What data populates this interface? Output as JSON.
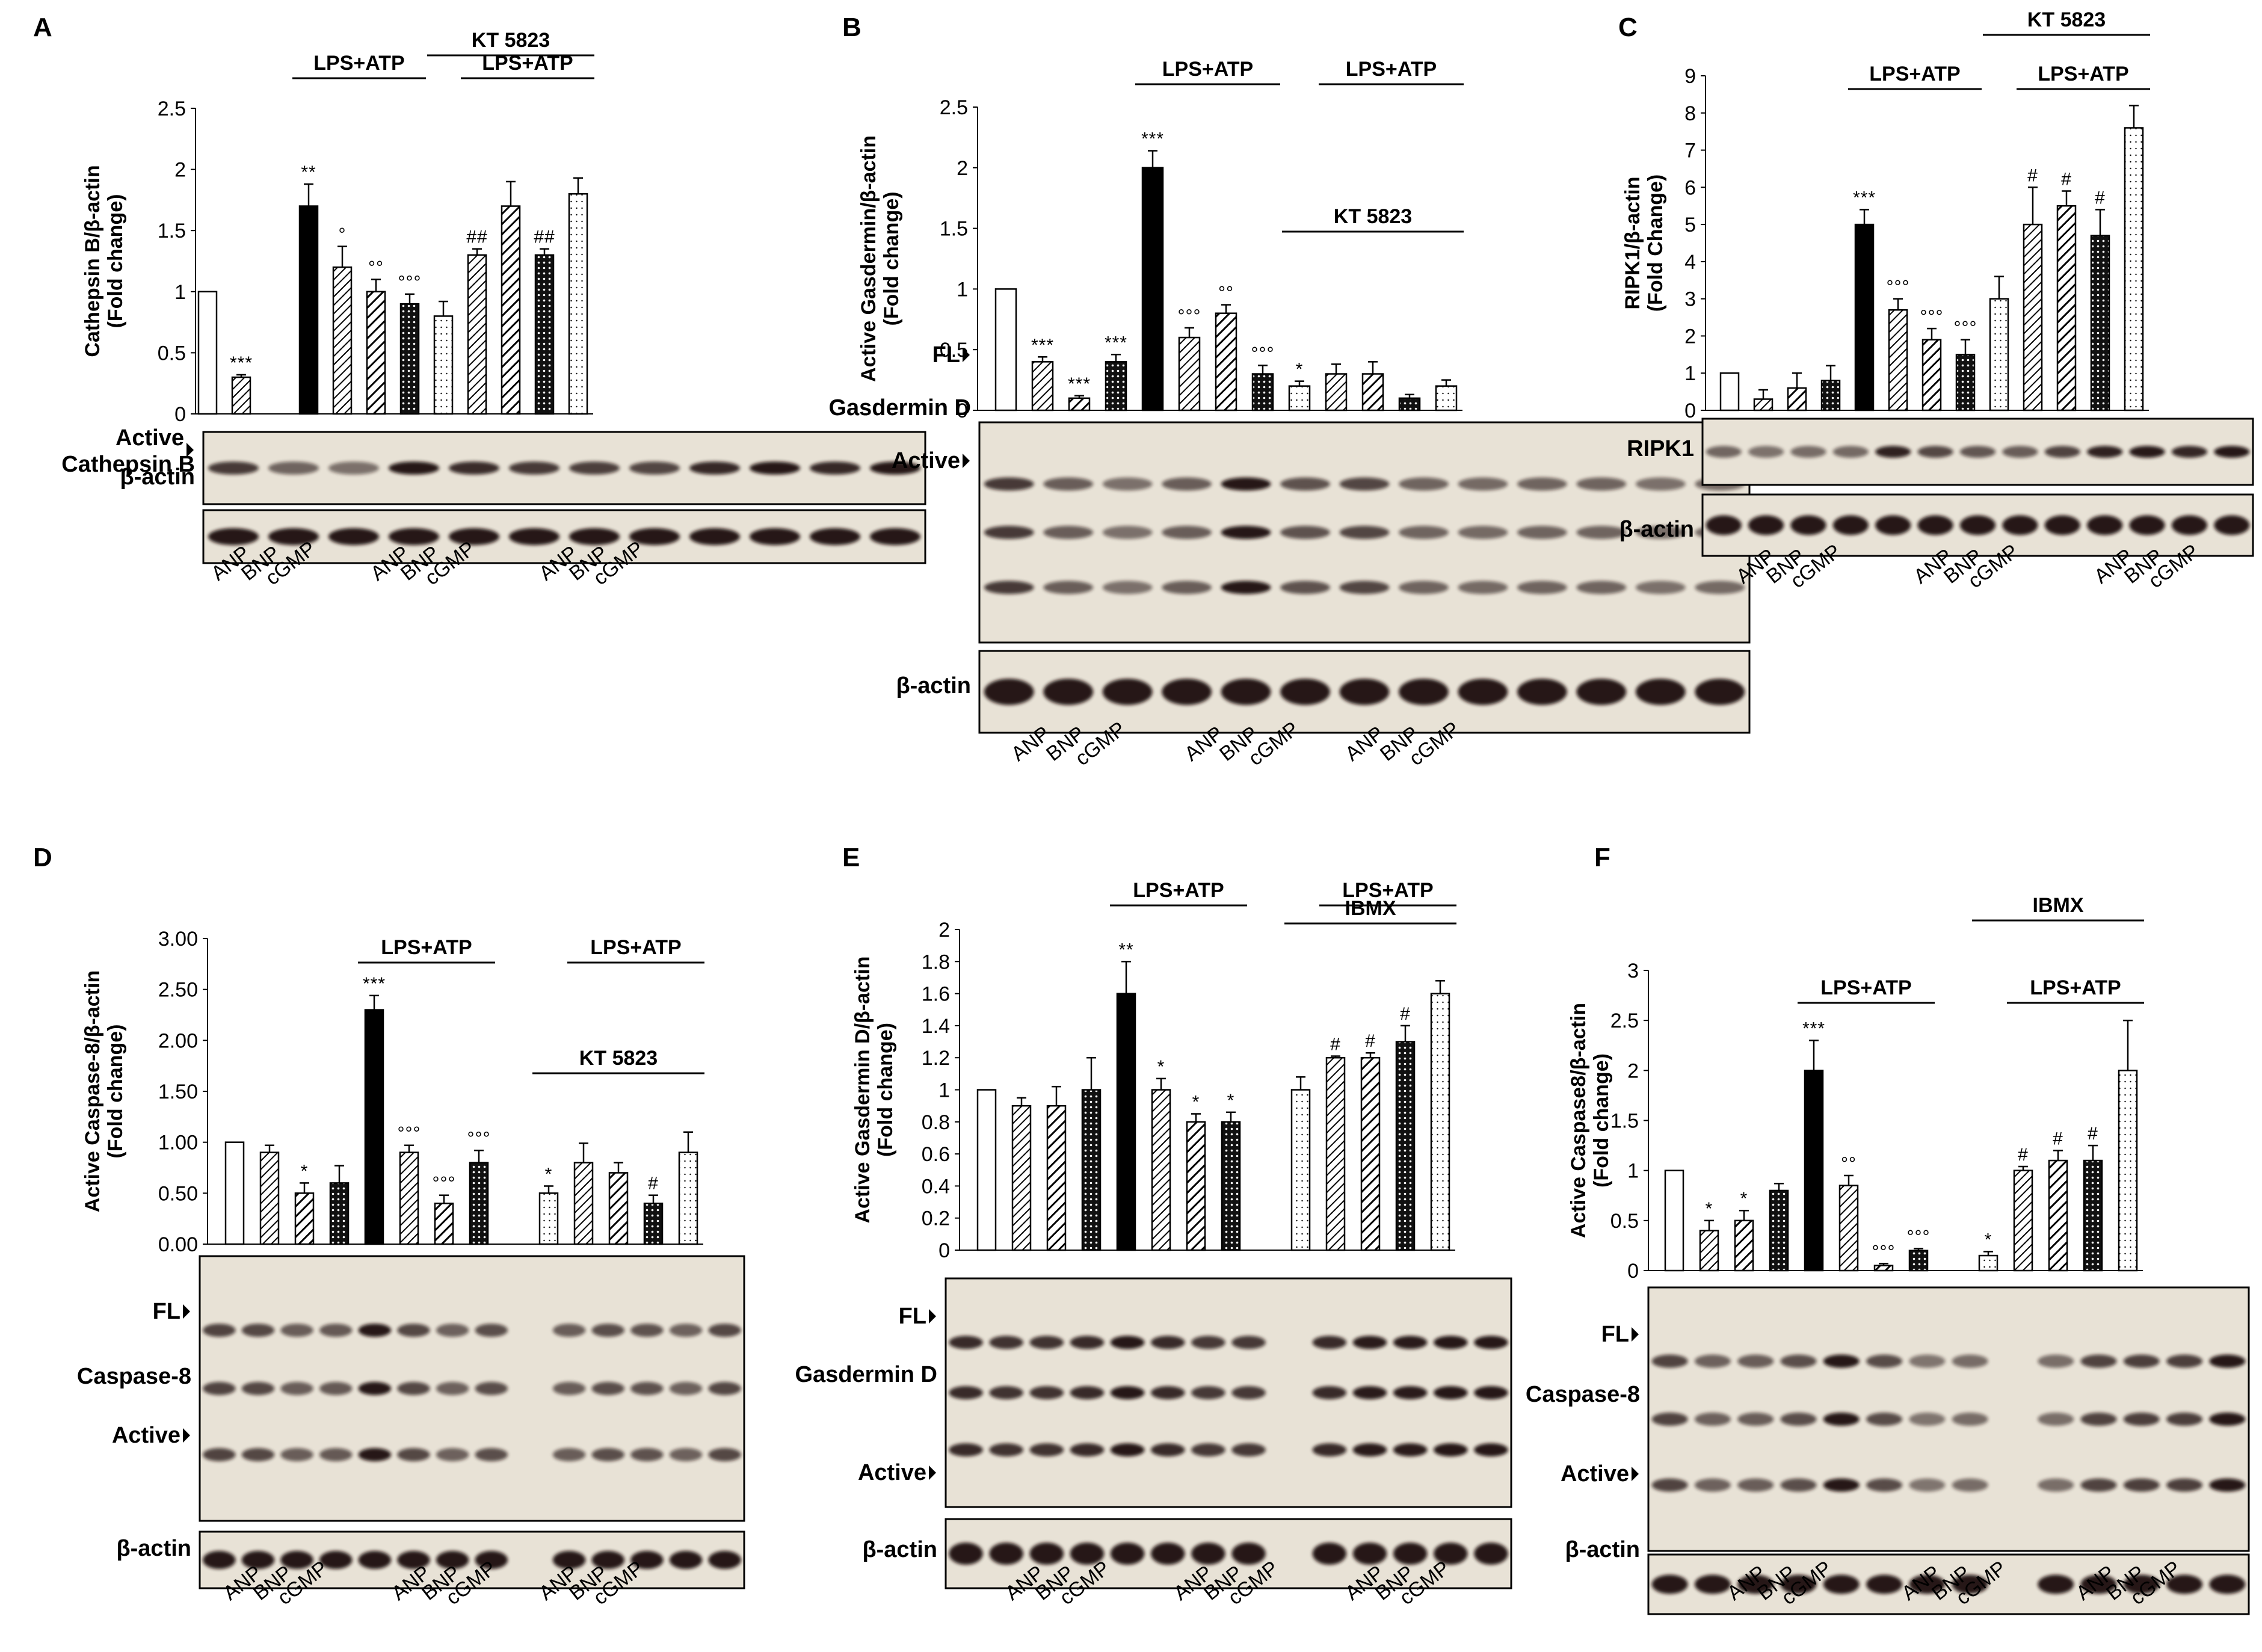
{
  "figure": {
    "bands": {
      "fl": "FL",
      "active": "Active",
      "actin": "β-actin"
    }
  },
  "chart_data": [
    {
      "panel": "A",
      "type": "bar",
      "ylabel": [
        "Cathepsin B/β-actin",
        "(Fold change)"
      ],
      "ylim": [
        0,
        2.5
      ],
      "yticks": [
        "0",
        "0.5",
        "1",
        "1.5",
        "2",
        "2.5"
      ],
      "values": [
        1,
        0.3,
        null,
        1.7,
        1.2,
        1.0,
        0.9,
        0.8,
        1.3,
        1.7,
        1.3,
        1.8
      ],
      "errors": [
        0,
        0.02,
        0,
        0.18,
        0.17,
        0.1,
        0.08,
        0.12,
        0.05,
        0.2,
        0.05,
        0.13
      ],
      "styles": [
        "white",
        "hatch",
        "white",
        "black",
        "hatch",
        "hatch2",
        "dots",
        "dotted",
        "hatch",
        "hatch2",
        "dots",
        "dotted"
      ],
      "annotations": [
        "",
        "***",
        "",
        "**",
        "°",
        "°°",
        "°°°",
        "",
        "##",
        "",
        "##",
        ""
      ],
      "brackets": [
        {
          "label": "LPS+ATP",
          "from": 3,
          "to": 6,
          "level": 0
        },
        {
          "label": "KT 5823",
          "from": 7,
          "to": 11,
          "level": 1
        },
        {
          "label": "LPS+ATP",
          "from": 8,
          "to": 11,
          "level": 0
        }
      ],
      "blots": [
        "Active\nCathepsin B",
        "β-actin"
      ],
      "xlabels": [
        "ANP",
        "BNP",
        "cGMP",
        "ANP",
        "BNP",
        "cGMP",
        "ANP",
        "BNP",
        "cGMP"
      ]
    },
    {
      "panel": "B",
      "type": "bar",
      "ylabel": [
        "Active Gasdermin/β-actin",
        "(Fold change)"
      ],
      "ylim": [
        0,
        2.5
      ],
      "yticks": [
        "0",
        "0.5",
        "1",
        "1.5",
        "2",
        "2.5"
      ],
      "values": [
        1,
        0.4,
        0.1,
        0.4,
        2.0,
        0.6,
        0.8,
        0.3,
        0.2,
        0.3,
        0.3,
        0.1,
        0.2
      ],
      "errors": [
        0,
        0.04,
        0.02,
        0.06,
        0.14,
        0.08,
        0.07,
        0.07,
        0.04,
        0.08,
        0.1,
        0.03,
        0.05
      ],
      "styles": [
        "white",
        "hatch",
        "hatch2",
        "dots",
        "black",
        "hatch",
        "hatch2",
        "dots",
        "dotted",
        "hatch",
        "hatch2",
        "dots",
        "dotted"
      ],
      "annotations": [
        "",
        "***",
        "***",
        "***",
        "***",
        "°°°",
        "°°",
        "°°°",
        "*",
        "",
        "",
        "",
        ""
      ],
      "brackets": [
        {
          "label": "LPS+ATP",
          "from": 4,
          "to": 7,
          "level": 0
        },
        {
          "label": "KT 5823",
          "from": 8,
          "to": 12,
          "level": 1
        },
        {
          "label": "LPS+ATP",
          "from": 9,
          "to": 12,
          "level": 0
        }
      ],
      "blots": [
        "FL",
        "Gasdermin D",
        "Active",
        "β-actin"
      ],
      "xlabels": [
        "ANP",
        "BNP",
        "cGMP",
        "ANP",
        "BNP",
        "cGMP",
        "ANP",
        "BNP",
        "cGMP"
      ]
    },
    {
      "panel": "C",
      "type": "bar",
      "ylabel": [
        "RIPK1/β-actin",
        "(Fold Change)"
      ],
      "ylim": [
        0,
        9
      ],
      "yticks": [
        "0",
        "1",
        "2",
        "3",
        "4",
        "5",
        "6",
        "7",
        "8",
        "9"
      ],
      "values": [
        1,
        0.3,
        0.6,
        0.8,
        5.0,
        2.7,
        1.9,
        1.5,
        3.0,
        5.0,
        5.5,
        4.7,
        7.6
      ],
      "errors": [
        0,
        0.25,
        0.4,
        0.4,
        0.4,
        0.3,
        0.3,
        0.4,
        0.6,
        1.0,
        0.4,
        0.7,
        0.6
      ],
      "styles": [
        "white",
        "hatch",
        "hatch2",
        "dots",
        "black",
        "hatch",
        "hatch2",
        "dots",
        "dotted",
        "hatch",
        "hatch2",
        "dots",
        "dotted"
      ],
      "annotations": [
        "",
        "",
        "",
        "",
        "***",
        "°°°",
        "°°°",
        "°°°",
        "",
        "#",
        "#",
        "#",
        ""
      ],
      "brackets": [
        {
          "label": "LPS+ATP",
          "from": 4,
          "to": 7,
          "level": 0
        },
        {
          "label": "KT 5823",
          "from": 8,
          "to": 12,
          "level": 1
        },
        {
          "label": "LPS+ATP",
          "from": 9,
          "to": 12,
          "level": 0
        }
      ],
      "blots": [
        "RIPK1",
        "β-actin"
      ],
      "xlabels": [
        "ANP",
        "BNP",
        "cGMP",
        "ANP",
        "BNP",
        "cGMP",
        "ANP",
        "BNP",
        "cGMP"
      ]
    },
    {
      "panel": "D",
      "type": "bar",
      "ylabel": [
        "Active Caspase-8/β-actin",
        "(Fold change)"
      ],
      "ylim": [
        0,
        3
      ],
      "yticks": [
        "0.00",
        "0.50",
        "1.00",
        "1.50",
        "2.00",
        "2.50",
        "3.00"
      ],
      "values": [
        1,
        0.9,
        0.5,
        0.6,
        2.3,
        0.9,
        0.4,
        0.8,
        null,
        0.5,
        0.8,
        0.7,
        0.4,
        0.9
      ],
      "errors": [
        0,
        0.07,
        0.1,
        0.17,
        0.14,
        0.07,
        0.08,
        0.12,
        0,
        0.07,
        0.19,
        0.1,
        0.08,
        0.2
      ],
      "styles": [
        "white",
        "hatch",
        "hatch2",
        "dots",
        "black",
        "hatch",
        "hatch2",
        "dots",
        "white",
        "dotted",
        "hatch",
        "hatch2",
        "dots",
        "dotted"
      ],
      "annotations": [
        "",
        "",
        "*",
        "",
        "***",
        "°°°",
        "°°°",
        "°°°",
        "",
        "*",
        "",
        "",
        "#",
        ""
      ],
      "brackets": [
        {
          "label": "LPS+ATP",
          "from": 4,
          "to": 7,
          "level": 0
        },
        {
          "label": "KT 5823",
          "from": 9,
          "to": 13,
          "level": 1
        },
        {
          "label": "LPS+ATP",
          "from": 10,
          "to": 13,
          "level": 0
        }
      ],
      "blots": [
        "FL",
        "Caspase-8",
        "Active",
        "β-actin"
      ],
      "xlabels": [
        "ANP",
        "BNP",
        "cGMP",
        "ANP",
        "BNP",
        "cGMP",
        "ANP",
        "BNP",
        "cGMP"
      ]
    },
    {
      "panel": "E",
      "type": "bar",
      "ylabel": [
        "Active Gasdermin D/β-actin",
        "(Fold change)"
      ],
      "ylim": [
        0,
        2
      ],
      "yticks": [
        "0",
        "0.2",
        "0.4",
        "0.6",
        "0.8",
        "1",
        "1.2",
        "1.4",
        "1.6",
        "1.8",
        "2"
      ],
      "values": [
        1,
        0.9,
        0.9,
        1.0,
        1.6,
        1.0,
        0.8,
        0.8,
        null,
        1.0,
        1.2,
        1.2,
        1.3,
        1.6
      ],
      "errors": [
        0,
        0.05,
        0.12,
        0.2,
        0.2,
        0.07,
        0.05,
        0.06,
        0,
        0.08,
        0.01,
        0.03,
        0.1,
        0.08
      ],
      "styles": [
        "white",
        "hatch",
        "hatch2",
        "dots",
        "black",
        "hatch",
        "hatch2",
        "dots",
        "white",
        "dotted",
        "hatch",
        "hatch2",
        "dots",
        "dotted"
      ],
      "annotations": [
        "",
        "",
        "",
        "",
        "**",
        "*",
        "*",
        "*",
        "",
        "",
        "#",
        "#",
        "#",
        ""
      ],
      "brackets": [
        {
          "label": "LPS+ATP",
          "from": 4,
          "to": 7,
          "level": 0
        },
        {
          "label": "IBMX",
          "from": 9,
          "to": 13,
          "level": 1
        },
        {
          "label": "LPS+ATP",
          "from": 10,
          "to": 13,
          "level": 0
        }
      ],
      "blots": [
        "FL",
        "Gasdermin D",
        "Active",
        "β-actin"
      ],
      "xlabels": [
        "ANP",
        "BNP",
        "cGMP",
        "ANP",
        "BNP",
        "cGMP",
        "ANP",
        "BNP",
        "cGMP"
      ]
    },
    {
      "panel": "F",
      "type": "bar",
      "ylabel": [
        "Active Caspase8/β-actin",
        "(Fold change)"
      ],
      "ylim": [
        0,
        3
      ],
      "yticks": [
        "0",
        "0.5",
        "1",
        "1.5",
        "2",
        "2.5",
        "3"
      ],
      "values": [
        1,
        0.4,
        0.5,
        0.8,
        2.0,
        0.85,
        0.05,
        0.2,
        null,
        0.15,
        1.0,
        1.1,
        1.1,
        2.0
      ],
      "errors": [
        0,
        0.1,
        0.1,
        0.07,
        0.3,
        0.1,
        0.02,
        0.02,
        0,
        0.04,
        0.04,
        0.1,
        0.15,
        0.5
      ],
      "styles": [
        "white",
        "hatch",
        "hatch2",
        "dots",
        "black",
        "hatch",
        "hatch2",
        "dots",
        "white",
        "dotted",
        "hatch",
        "hatch2",
        "dots",
        "dotted"
      ],
      "annotations": [
        "",
        "*",
        "*",
        "",
        "***",
        "°°",
        "°°°",
        "°°°",
        "",
        "*",
        "#",
        "#",
        "#",
        ""
      ],
      "brackets": [
        {
          "label": "LPS+ATP",
          "from": 4,
          "to": 7,
          "level": 0
        },
        {
          "label": "IBMX",
          "from": 9,
          "to": 13,
          "level": 1
        },
        {
          "label": "LPS+ATP",
          "from": 10,
          "to": 13,
          "level": 0
        }
      ],
      "blots": [
        "FL",
        "Caspase-8",
        "Active",
        "β-actin"
      ],
      "xlabels": [
        "ANP",
        "BNP",
        "cGMP",
        "ANP",
        "BNP",
        "cGMP",
        "ANP",
        "BNP",
        "cGMP"
      ]
    }
  ]
}
